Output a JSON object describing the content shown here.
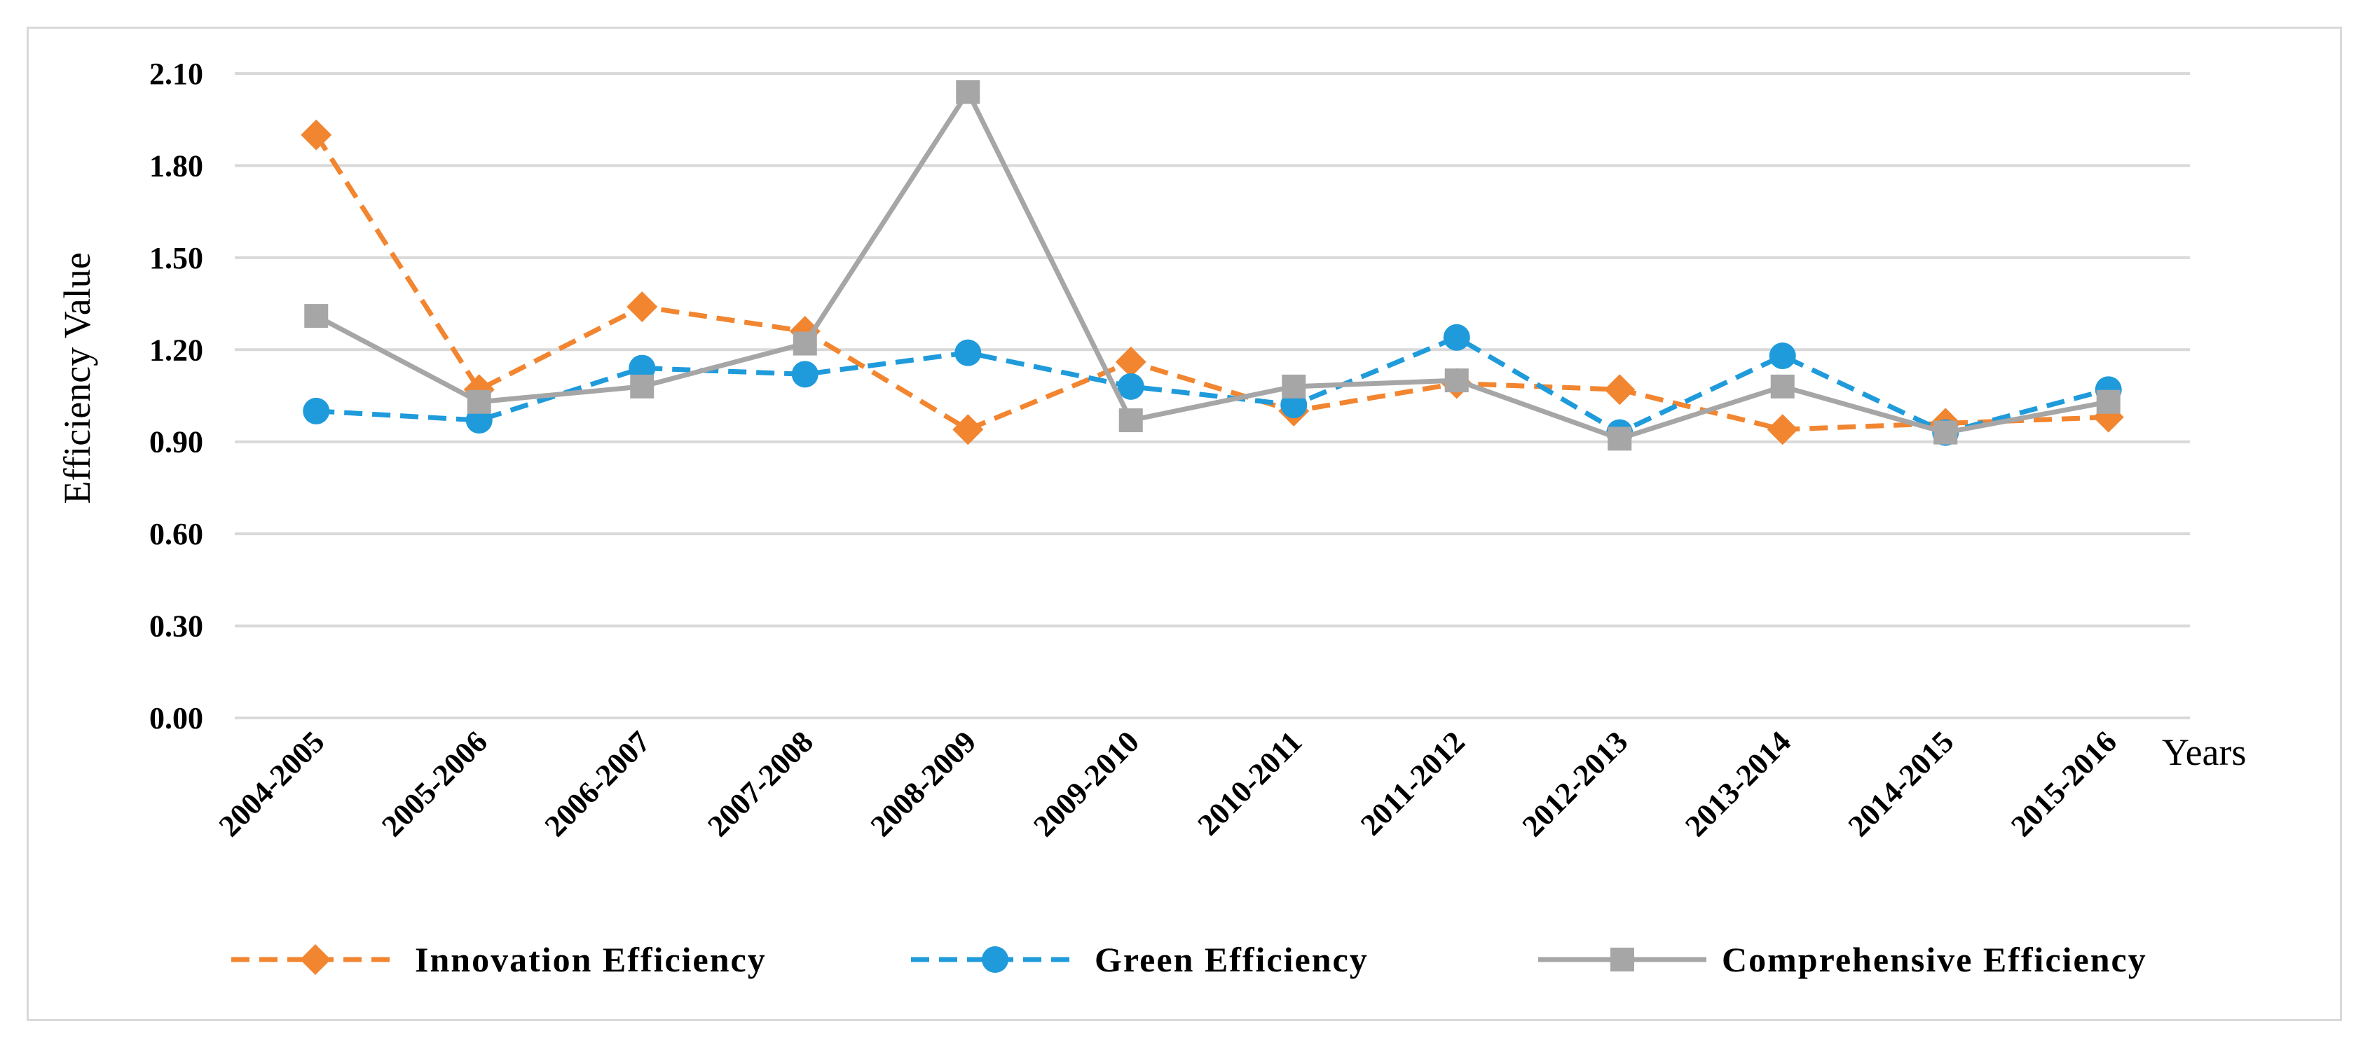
{
  "chart_data": {
    "type": "line",
    "ylabel": "Efficiency Value",
    "xlabel": "Years",
    "ylim": [
      0,
      2.1
    ],
    "yticks": [
      "0.00",
      "0.30",
      "0.60",
      "0.90",
      "1.20",
      "1.50",
      "1.80",
      "2.10"
    ],
    "grid": true,
    "legend_position": "bottom",
    "categories": [
      "2004-2005",
      "2005-2006",
      "2006-2007",
      "2007-2008",
      "2008-2009",
      "2009-2010",
      "2010-2011",
      "2011-2012",
      "2012-2013",
      "2013-2014",
      "2014-2015",
      "2015-2016"
    ],
    "series": [
      {
        "name": "Innovation Efficiency",
        "color": "#f28530",
        "marker": "diamond",
        "dash": "dashed",
        "values": [
          1.9,
          1.07,
          1.34,
          1.26,
          0.94,
          1.16,
          1.0,
          1.09,
          1.07,
          0.94,
          0.96,
          0.98
        ]
      },
      {
        "name": "Green Efficiency",
        "color": "#1f9bdb",
        "marker": "circle",
        "dash": "dashed",
        "values": [
          1.0,
          0.97,
          1.14,
          1.12,
          1.19,
          1.08,
          1.02,
          1.24,
          0.93,
          1.18,
          0.93,
          1.07
        ]
      },
      {
        "name": "Comprehensive Efficiency",
        "color": "#a6a6a6",
        "marker": "square",
        "dash": "solid",
        "values": [
          1.31,
          1.03,
          1.08,
          1.22,
          2.04,
          0.97,
          1.08,
          1.1,
          0.91,
          1.08,
          0.93,
          1.03
        ]
      }
    ]
  }
}
